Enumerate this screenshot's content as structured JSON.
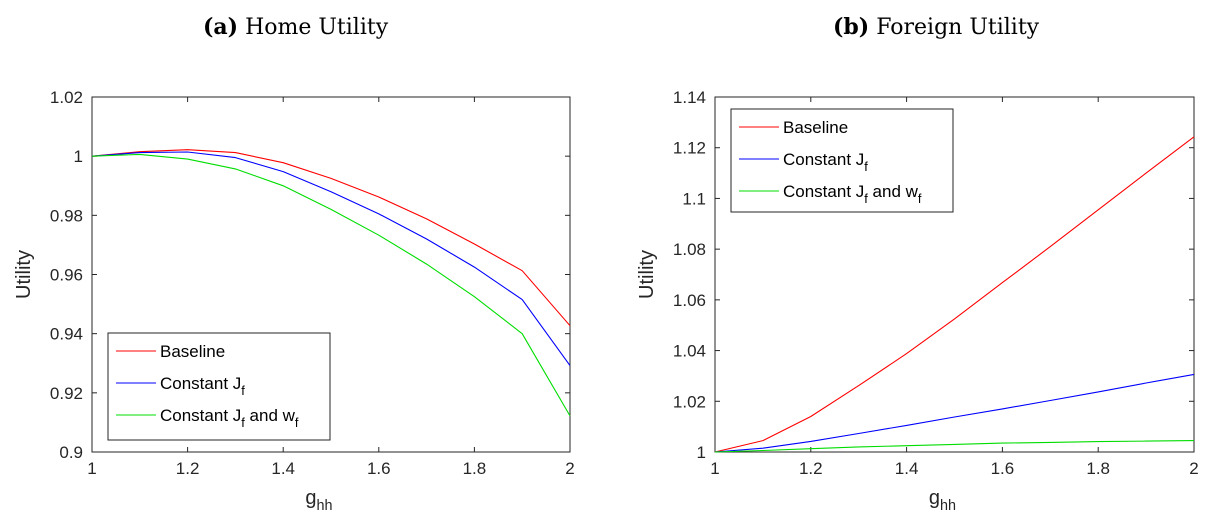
{
  "chart_data": [
    {
      "type": "line",
      "panel_tag": "(a)",
      "title": "Home Utility",
      "xlabel": "g",
      "xlabel_sub": "hh",
      "ylabel": "Utility",
      "xlim": [
        1,
        2
      ],
      "ylim": [
        0.9,
        1.02
      ],
      "xticks": [
        "1",
        "1.2",
        "1.4",
        "1.6",
        "1.8",
        "2"
      ],
      "yticks": [
        "0.9",
        "0.92",
        "0.94",
        "0.96",
        "0.98",
        "1",
        "1.02"
      ],
      "x": [
        1.0,
        1.1,
        1.2,
        1.3,
        1.4,
        1.5,
        1.6,
        1.7,
        1.8,
        1.9,
        2.0
      ],
      "legend_position": "bottom-left",
      "series": [
        {
          "name": "Baseline",
          "color": "#ff0000",
          "values": [
            1.0,
            1.0015,
            1.0022,
            1.0012,
            0.9978,
            0.9925,
            0.9862,
            0.9788,
            0.9703,
            0.9613,
            0.9427
          ]
        },
        {
          "name": "Constant J_f",
          "color": "#0000ff",
          "values": [
            1.0,
            1.0012,
            1.0014,
            0.9995,
            0.9948,
            0.988,
            0.9805,
            0.972,
            0.9625,
            0.9515,
            0.9292
          ]
        },
        {
          "name": "Constant J_f and w_f",
          "color": "#00dd00",
          "values": [
            1.0,
            1.0006,
            0.999,
            0.9957,
            0.99,
            0.982,
            0.9733,
            0.9635,
            0.9525,
            0.94,
            0.9122
          ]
        }
      ]
    },
    {
      "type": "line",
      "panel_tag": "(b)",
      "title": "Foreign Utility",
      "xlabel": "g",
      "xlabel_sub": "hh",
      "ylabel": "Utility",
      "xlim": [
        1,
        2
      ],
      "ylim": [
        1,
        1.14
      ],
      "xticks": [
        "1",
        "1.2",
        "1.4",
        "1.6",
        "1.8",
        "2"
      ],
      "yticks": [
        "1",
        "1.02",
        "1.04",
        "1.06",
        "1.08",
        "1.1",
        "1.12",
        "1.14"
      ],
      "x": [
        1.0,
        1.1,
        1.2,
        1.3,
        1.4,
        1.5,
        1.6,
        1.7,
        1.8,
        1.9,
        2.0
      ],
      "legend_position": "top-left",
      "series": [
        {
          "name": "Baseline",
          "color": "#ff0000",
          "values": [
            1.0,
            1.0045,
            1.014,
            1.0262,
            1.0388,
            1.0525,
            1.0668,
            1.081,
            1.0955,
            1.11,
            1.1243
          ]
        },
        {
          "name": "Constant J_f",
          "color": "#0000ff",
          "values": [
            1.0,
            1.0015,
            1.0042,
            1.0073,
            1.0105,
            1.0138,
            1.017,
            1.0203,
            1.0237,
            1.0272,
            1.0306
          ]
        },
        {
          "name": "Constant J_f and w_f",
          "color": "#00dd00",
          "values": [
            1.0,
            1.0006,
            1.0013,
            1.002,
            1.0025,
            1.003,
            1.0035,
            1.0038,
            1.0041,
            1.0043,
            1.0045
          ]
        }
      ]
    }
  ]
}
